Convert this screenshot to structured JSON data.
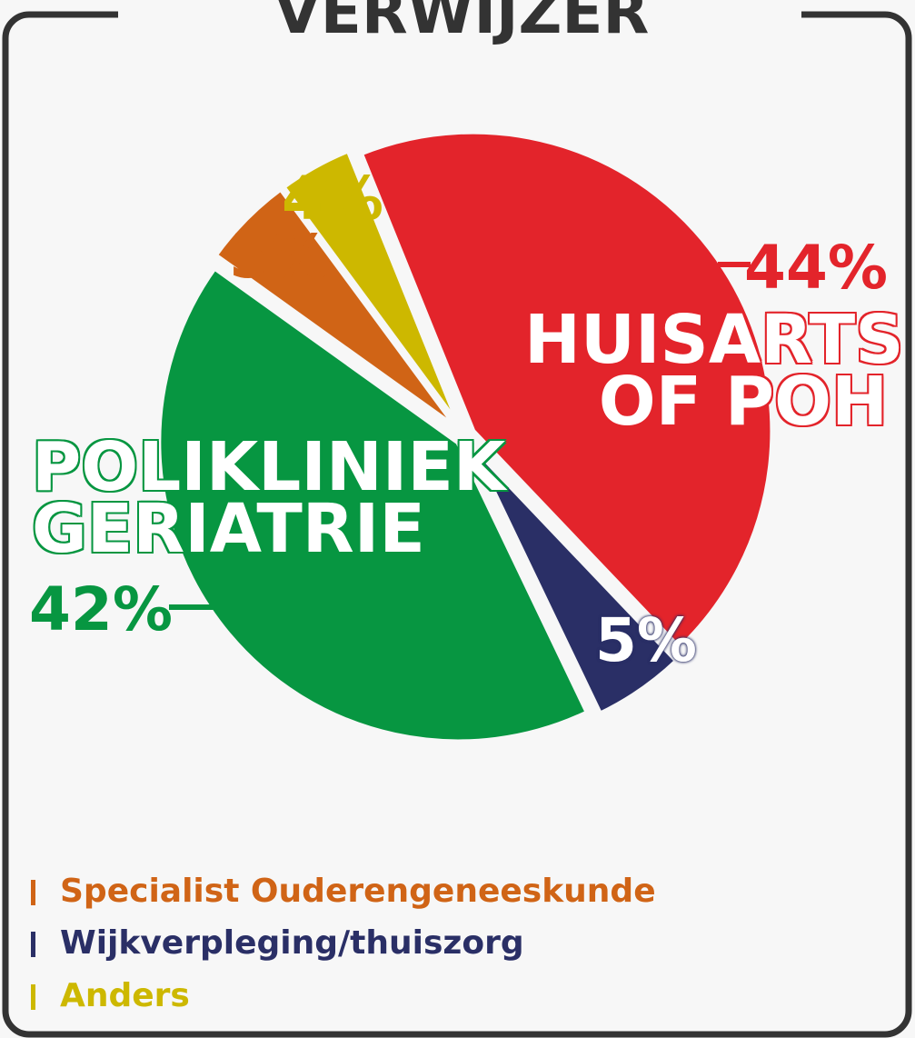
{
  "chart_data": {
    "type": "pie",
    "title": "VERWIJZER",
    "categories": [
      "HUISARTS OF POH",
      "Wijkverpleging/thuiszorg",
      "POLIKLINIEK GERIATRIE",
      "Specialist Ouderengeneeskunde",
      "Anders"
    ],
    "values": [
      44,
      5,
      42,
      5,
      4
    ],
    "value_labels": [
      "44%",
      "5%",
      "42%",
      "5%",
      "4%"
    ],
    "colors": [
      "#e3242b",
      "#2a2f66",
      "#079641",
      "#d06416",
      "#cdb800"
    ]
  }
}
